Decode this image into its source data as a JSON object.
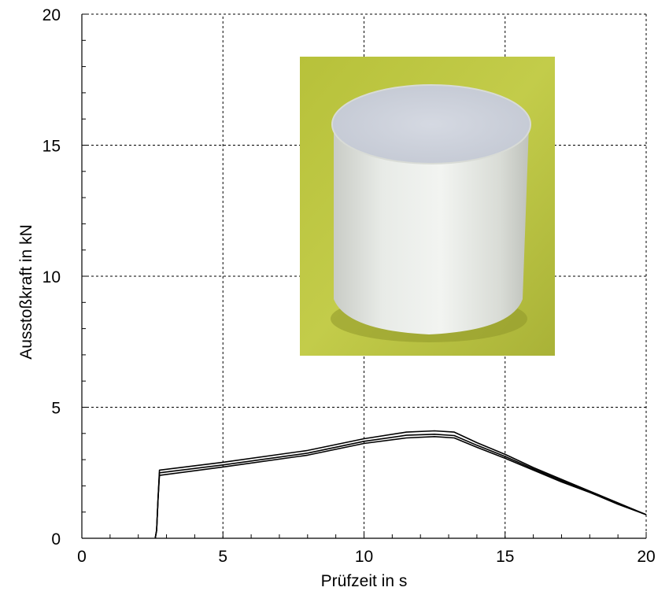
{
  "chart_data": {
    "type": "line",
    "xlabel": "Prüfzeit in s",
    "ylabel": "Ausstoßkraft in kN",
    "xlim": [
      0,
      20
    ],
    "ylim": [
      0,
      20
    ],
    "xticks": [
      0,
      5,
      10,
      15,
      20
    ],
    "yticks": [
      0,
      5,
      10,
      15,
      20
    ],
    "grid": true,
    "inset_image": "white-cylinder-photo",
    "series": [
      {
        "x": [
          2.6,
          2.65,
          2.7,
          2.75,
          5,
          8,
          10,
          11.5,
          12.5,
          13.2,
          14,
          15,
          16,
          17,
          18,
          19,
          20
        ],
        "y": [
          0,
          0.3,
          1.5,
          2.6,
          2.9,
          3.35,
          3.8,
          4.05,
          4.1,
          4.05,
          3.65,
          3.2,
          2.7,
          2.25,
          1.8,
          1.35,
          0.9
        ]
      },
      {
        "x": [
          2.6,
          2.65,
          2.7,
          2.75,
          5,
          8,
          10,
          11.5,
          12.5,
          13.2,
          14,
          15,
          16,
          17,
          18,
          19,
          20
        ],
        "y": [
          0,
          0.3,
          1.5,
          2.5,
          2.8,
          3.25,
          3.7,
          3.93,
          3.97,
          3.92,
          3.55,
          3.12,
          2.65,
          2.2,
          1.78,
          1.33,
          0.9
        ]
      },
      {
        "x": [
          2.6,
          2.65,
          2.7,
          2.75,
          5,
          8,
          10,
          11.5,
          12.5,
          13.2,
          14,
          15,
          16,
          17,
          18,
          19,
          20
        ],
        "y": [
          0,
          0.3,
          1.5,
          2.4,
          2.72,
          3.17,
          3.62,
          3.83,
          3.88,
          3.83,
          3.47,
          3.05,
          2.6,
          2.15,
          1.75,
          1.3,
          0.9
        ]
      }
    ]
  }
}
